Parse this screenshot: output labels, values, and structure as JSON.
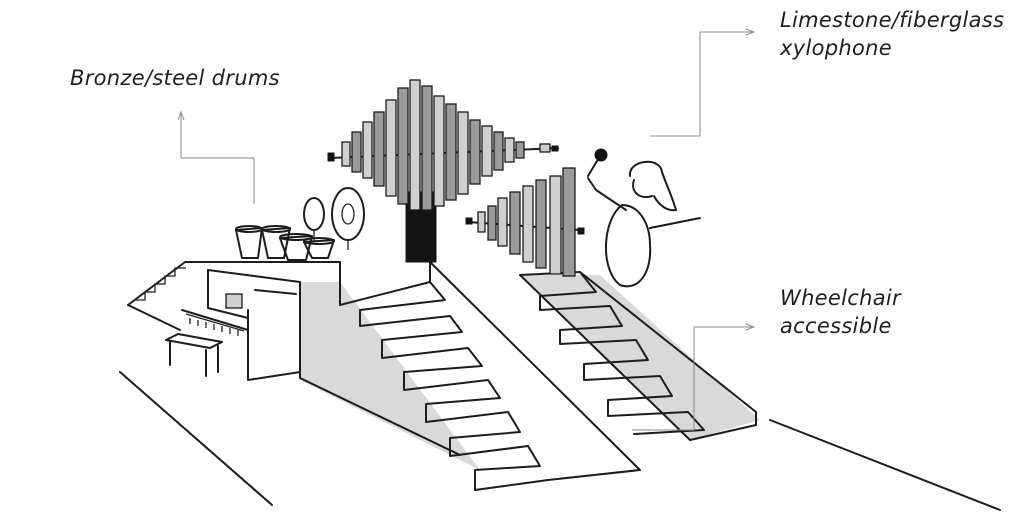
{
  "labels": {
    "drums": "Bronze/steel drums",
    "xylophone_line1": "Limestone/fiberglass",
    "xylophone_line2": "xylophone",
    "accessible_line1": "Wheelchair",
    "accessible_line2": "accessible"
  },
  "colors": {
    "ink": "#1c1c1c",
    "leader": "#8a8a8a",
    "background": "#ffffff"
  }
}
